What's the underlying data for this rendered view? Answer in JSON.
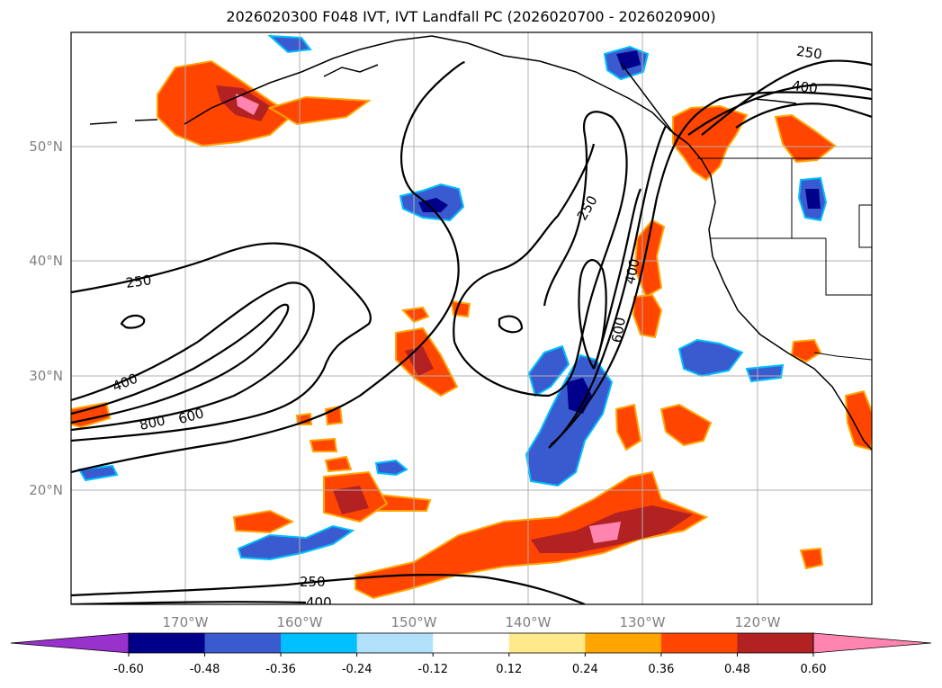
{
  "chart_data": {
    "type": "contour-map",
    "title": "2026020300 F048 IVT, IVT Landfall PC (2026020700 - 2026020900)",
    "map": {
      "lon_range": [
        -180,
        -110
      ],
      "lat_range": [
        10,
        60
      ],
      "lon_ticks": [
        "170°W",
        "160°W",
        "150°W",
        "140°W",
        "130°W",
        "120°W"
      ],
      "lat_ticks": [
        "50°N",
        "40°N",
        "30°N",
        "20°N"
      ],
      "grid": true
    },
    "ivt_contours": {
      "levels": [
        250,
        400,
        600,
        800
      ],
      "labels": [
        "250",
        "400",
        "250",
        "400",
        "600",
        "400",
        "800",
        "600",
        "250",
        "250",
        "400"
      ]
    },
    "colorbar": {
      "extend": "both",
      "ticks": [
        "-0.60",
        "-0.48",
        "-0.36",
        "-0.24",
        "-0.12",
        "0.12",
        "0.24",
        "0.36",
        "0.48",
        "0.60"
      ],
      "colors": [
        "#9932cc",
        "#00008b",
        "#3a5bd0",
        "#00bfff",
        "#b0e0fa",
        "#ffffff",
        "#ffe98a",
        "#ffa500",
        "#ff4500",
        "#b22222",
        "#ff85b0"
      ]
    }
  }
}
